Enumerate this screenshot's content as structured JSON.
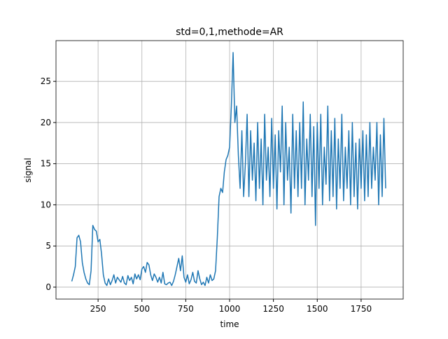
{
  "chart_data": {
    "type": "line",
    "title": "std=0,1,methode=AR",
    "x_label": "time",
    "y_label": "signal",
    "x": [
      100,
      110,
      120,
      130,
      140,
      150,
      160,
      170,
      180,
      190,
      200,
      210,
      220,
      230,
      240,
      250,
      260,
      270,
      280,
      290,
      300,
      310,
      320,
      330,
      340,
      350,
      360,
      370,
      380,
      390,
      400,
      410,
      420,
      430,
      440,
      450,
      460,
      470,
      480,
      490,
      500,
      510,
      520,
      530,
      540,
      550,
      560,
      570,
      580,
      590,
      600,
      610,
      620,
      630,
      640,
      650,
      660,
      670,
      680,
      690,
      700,
      710,
      720,
      730,
      740,
      750,
      760,
      770,
      780,
      790,
      800,
      810,
      820,
      830,
      840,
      850,
      860,
      870,
      880,
      890,
      900,
      910,
      920,
      930,
      940,
      950,
      960,
      970,
      980,
      990,
      1000,
      1010,
      1020,
      1030,
      1040,
      1050,
      1060,
      1070,
      1080,
      1090,
      1100,
      1110,
      1120,
      1130,
      1140,
      1150,
      1160,
      1170,
      1180,
      1190,
      1200,
      1210,
      1220,
      1230,
      1240,
      1250,
      1260,
      1270,
      1280,
      1290,
      1300,
      1310,
      1320,
      1330,
      1340,
      1350,
      1360,
      1370,
      1380,
      1390,
      1400,
      1410,
      1420,
      1430,
      1440,
      1450,
      1460,
      1470,
      1480,
      1490,
      1500,
      1510,
      1520,
      1530,
      1540,
      1550,
      1560,
      1570,
      1580,
      1590,
      1600,
      1610,
      1620,
      1630,
      1640,
      1650,
      1660,
      1670,
      1680,
      1690,
      1700,
      1710,
      1720,
      1730,
      1740,
      1750,
      1760,
      1770,
      1780,
      1790,
      1800,
      1810,
      1820,
      1830,
      1840,
      1850,
      1860,
      1870,
      1880,
      1890
    ],
    "series": [
      {
        "color": "#1f77b4",
        "values": [
          0.7,
          1.5,
          2.5,
          6,
          6.3,
          5.5,
          3,
          1.8,
          1,
          0.5,
          0.3,
          2,
          7.5,
          7,
          6.8,
          5.5,
          5.8,
          4,
          1.5,
          0.5,
          0.2,
          1,
          0.3,
          0.8,
          1.5,
          0.5,
          1.2,
          0.9,
          0.6,
          1.3,
          0.5,
          0.3,
          1.4,
          0.8,
          1.2,
          0.4,
          1.6,
          1.0,
          1.5,
          0.9,
          2.2,
          2.5,
          1.8,
          3,
          2.7,
          1.5,
          0.8,
          1.6,
          1.2,
          0.6,
          1.2,
          0.5,
          1.8,
          0.4,
          0.3,
          0.5,
          0.6,
          0.2,
          0.7,
          1.5,
          2.5,
          3.5,
          2,
          3.8,
          1.2,
          0.6,
          1.5,
          0.4,
          0.9,
          1.8,
          0.7,
          0.5,
          2,
          1,
          0.3,
          0.6,
          0.2,
          1.2,
          0.5,
          1.5,
          0.8,
          1,
          2,
          6,
          11,
          12,
          11.5,
          14,
          15.5,
          16,
          17,
          22,
          28.5,
          20,
          22,
          16,
          12,
          19,
          11,
          15,
          21,
          11,
          19,
          13,
          17.5,
          10.5,
          20,
          12,
          18,
          10,
          21,
          13,
          17,
          11,
          20.5,
          12,
          18.5,
          9.5,
          19,
          14,
          22,
          10,
          20,
          13,
          17,
          9,
          21,
          12,
          19,
          11,
          20,
          12,
          22.5,
          10,
          18,
          13,
          21,
          11,
          19.5,
          7.5,
          20,
          12,
          21,
          10,
          17,
          12.5,
          22,
          10.5,
          19,
          11,
          20.5,
          9.5,
          18,
          12,
          21,
          10.5,
          17,
          12,
          19,
          10,
          20,
          11,
          17.5,
          9.5,
          18,
          12,
          19,
          10.5,
          18.5,
          11,
          20,
          12,
          17,
          13,
          20,
          10,
          18.5,
          11,
          20.5,
          12
        ]
      }
    ],
    "xlim": [
      10,
      1990
    ],
    "ylim": [
      -1.45,
      29.95
    ],
    "xticks": [
      250,
      500,
      750,
      1000,
      1250,
      1500,
      1750
    ],
    "yticks": [
      0,
      5,
      10,
      15,
      20,
      25
    ],
    "grid": true
  }
}
